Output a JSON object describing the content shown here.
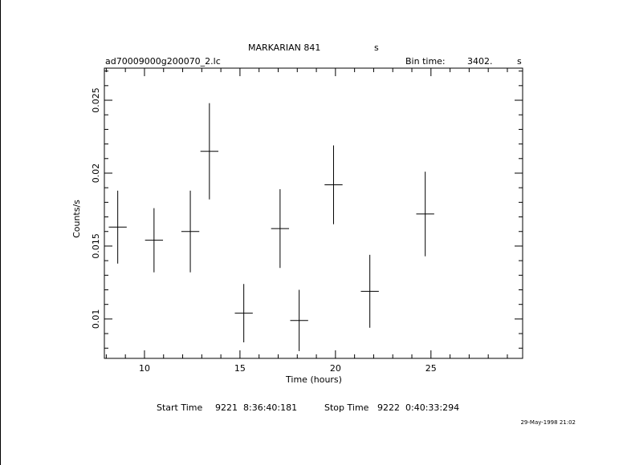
{
  "header": {
    "object": "MARKARIAN 841",
    "object_unit": "s",
    "filename": "ad70009000g200070_2.lc",
    "bin_time_label": "Bin time:",
    "bin_time_value": "3402.",
    "bin_time_unit": "s"
  },
  "footer": {
    "start_label": "Start Time",
    "start_value": "9221  8:36:40:181",
    "stop_label": "Stop Time",
    "stop_value": "9222  0:40:33:294",
    "timestamp": "29-May-1998 21:02"
  },
  "chart_data": {
    "type": "scatter",
    "title": "MARKARIAN 841",
    "xlabel": "Time (hours)",
    "ylabel": "Counts/s",
    "xlim": [
      7.9,
      29.8
    ],
    "ylim": [
      0.0073,
      0.0272
    ],
    "x_ticks": [
      10,
      15,
      20,
      25
    ],
    "x_tick_labels": [
      "10",
      "15",
      "20",
      "25"
    ],
    "y_ticks": [
      0.01,
      0.015,
      0.02,
      0.025
    ],
    "y_tick_labels": [
      "0.01",
      "0.015",
      "0.02",
      "0.025"
    ],
    "grid": false,
    "points": [
      {
        "x": 8.6,
        "xerr": 0.47,
        "y": 0.0163,
        "yerr": 0.0025
      },
      {
        "x": 10.5,
        "xerr": 0.47,
        "y": 0.0154,
        "yerr": 0.0022
      },
      {
        "x": 12.4,
        "xerr": 0.47,
        "y": 0.016,
        "yerr": 0.0028
      },
      {
        "x": 13.4,
        "xerr": 0.47,
        "y": 0.0215,
        "yerr": 0.0033
      },
      {
        "x": 15.2,
        "xerr": 0.47,
        "y": 0.0104,
        "yerr": 0.002
      },
      {
        "x": 17.1,
        "xerr": 0.47,
        "y": 0.0162,
        "yerr": 0.0027
      },
      {
        "x": 18.1,
        "xerr": 0.47,
        "y": 0.0099,
        "yerr": 0.0021
      },
      {
        "x": 19.9,
        "xerr": 0.47,
        "y": 0.0192,
        "yerr": 0.0027
      },
      {
        "x": 21.8,
        "xerr": 0.47,
        "y": 0.0119,
        "yerr": 0.0025
      },
      {
        "x": 24.7,
        "xerr": 0.47,
        "y": 0.0172,
        "yerr": 0.0029
      }
    ]
  }
}
